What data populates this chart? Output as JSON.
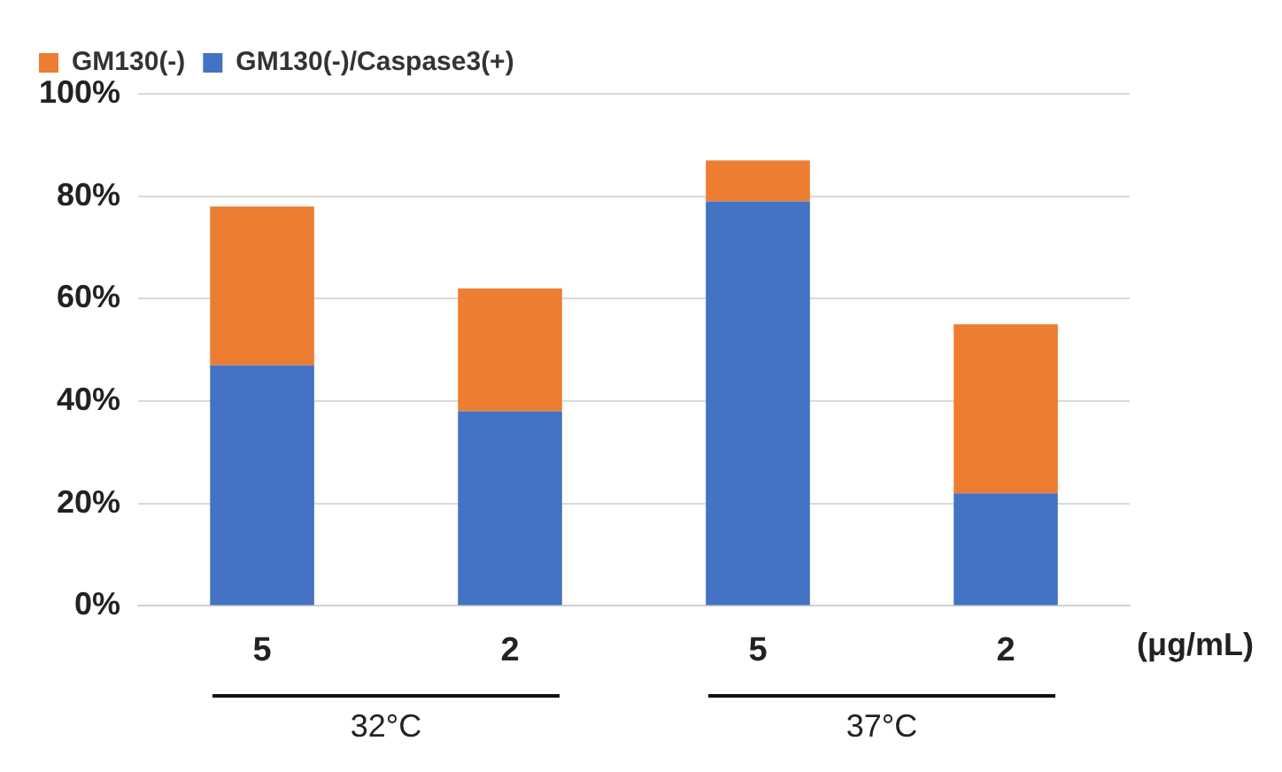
{
  "chart_data": {
    "type": "bar",
    "stacked": true,
    "categories": [
      "5",
      "2",
      "5",
      "2"
    ],
    "series": [
      {
        "name": "GM130(-)/Caspase3(+)",
        "color": "#4472c4",
        "values": [
          47,
          38,
          79,
          22
        ]
      },
      {
        "name": "GM130(-)",
        "color": "#ed7d31",
        "values": [
          31,
          24,
          8,
          33
        ]
      }
    ],
    "ylim": [
      0,
      100
    ],
    "yticks": [
      {
        "value": 0,
        "label": "0%"
      },
      {
        "value": 20,
        "label": "20%"
      },
      {
        "value": 40,
        "label": "40%"
      },
      {
        "value": 60,
        "label": "60%"
      },
      {
        "value": 80,
        "label": "80%"
      },
      {
        "value": 100,
        "label": "100%"
      }
    ],
    "grid": "y",
    "legend": "top left",
    "annotations": [
      "(μg/mL)",
      "32°C",
      "37°C"
    ]
  }
}
